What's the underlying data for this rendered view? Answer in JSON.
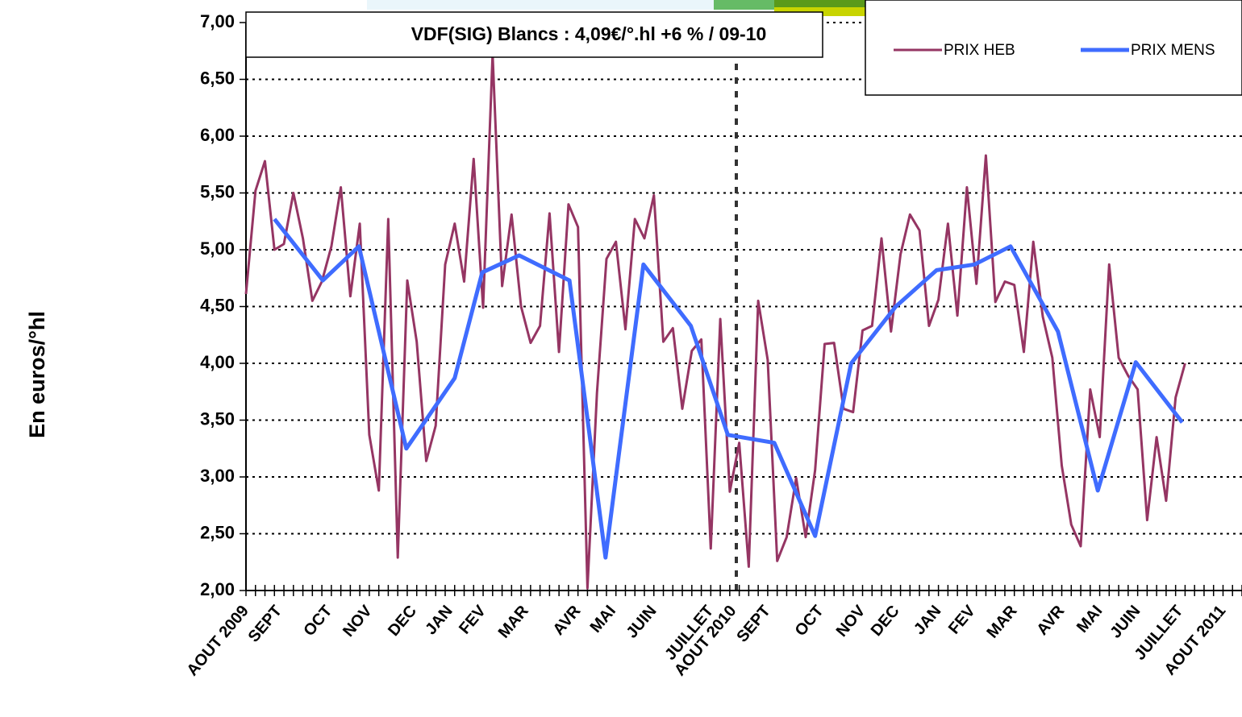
{
  "chart_data": {
    "type": "line",
    "annotation": "VDF(SIG) Blancs : 4,09€/°.hl +6 % / 09-10",
    "ylabel": "En euros/°hl",
    "xlim": [
      0,
      105
    ],
    "ylim": [
      2,
      7
    ],
    "yticks": [
      {
        "value": 2,
        "label": "2,00"
      },
      {
        "value": 2.5,
        "label": "2,50"
      },
      {
        "value": 3,
        "label": "3,00"
      },
      {
        "value": 3.5,
        "label": "3,50"
      },
      {
        "value": 4,
        "label": "4,00"
      },
      {
        "value": 4.5,
        "label": "4,50"
      },
      {
        "value": 5,
        "label": "5,00"
      },
      {
        "value": 5.5,
        "label": "5,50"
      },
      {
        "value": 6,
        "label": "6,00"
      },
      {
        "value": 6.5,
        "label": "6,50"
      },
      {
        "value": 7,
        "label": "7,00"
      }
    ],
    "xticks": [
      {
        "value": 0,
        "label": "AOUT 2009"
      },
      {
        "value": 3.5,
        "label": "SEPT"
      },
      {
        "value": 8.8,
        "label": "OCT"
      },
      {
        "value": 13,
        "label": "NOV"
      },
      {
        "value": 17.7,
        "label": "DEC"
      },
      {
        "value": 21.5,
        "label": "JAN"
      },
      {
        "value": 25,
        "label": "FEV"
      },
      {
        "value": 29.5,
        "label": "MAR"
      },
      {
        "value": 35,
        "label": "AVR"
      },
      {
        "value": 38.7,
        "label": "MAI"
      },
      {
        "value": 43,
        "label": "JUIN"
      },
      {
        "value": 49,
        "label": "JUILLET"
      },
      {
        "value": 51.4,
        "label": "AOUT 2010"
      },
      {
        "value": 55,
        "label": "SEPT"
      },
      {
        "value": 60.6,
        "label": "OCT"
      },
      {
        "value": 65,
        "label": "NOV"
      },
      {
        "value": 68.6,
        "label": "DEC"
      },
      {
        "value": 73,
        "label": "JAN"
      },
      {
        "value": 76.6,
        "label": "FEV"
      },
      {
        "value": 81,
        "label": "MAR"
      },
      {
        "value": 86,
        "label": "AVR"
      },
      {
        "value": 90,
        "label": "MAI"
      },
      {
        "value": 94,
        "label": "JUIN"
      },
      {
        "value": 98.5,
        "label": "JUILLET"
      },
      {
        "value": 103,
        "label": "AOUT 2011"
      }
    ],
    "xminorticks": [
      0,
      1,
      2,
      3,
      4,
      5,
      6,
      7,
      8,
      9,
      10,
      11,
      12,
      13,
      14,
      15,
      16,
      17,
      18,
      19,
      20,
      21,
      22,
      23,
      24,
      25,
      26,
      27,
      28,
      29,
      30,
      31,
      32,
      33,
      34,
      35,
      36,
      37,
      38,
      39,
      40,
      41,
      42,
      43,
      44,
      45,
      46,
      47,
      48,
      49,
      50,
      51,
      52,
      53,
      54,
      55,
      56,
      57,
      58,
      59,
      60,
      61,
      62,
      63,
      64,
      65,
      66,
      67,
      68,
      69,
      70,
      71,
      72,
      73,
      74,
      75,
      76,
      77,
      78,
      79,
      80,
      81,
      82,
      83,
      84,
      85,
      86,
      87,
      88,
      89,
      90,
      91,
      92,
      93,
      94,
      95,
      96,
      97,
      98,
      99,
      100,
      101,
      102,
      103,
      104,
      105
    ],
    "grid": true,
    "legend": "upper right",
    "series": [
      {
        "name": "PRIX HEB",
        "color": "#953563",
        "width": 3,
        "x": [
          0,
          1,
          2,
          3,
          4,
          5,
          6,
          7,
          8,
          9,
          10,
          11,
          12,
          13,
          14,
          15,
          16,
          17,
          18,
          19,
          20,
          21,
          22,
          23,
          24,
          25,
          26,
          27,
          28,
          29,
          30,
          31,
          32,
          33,
          34,
          35,
          36,
          37,
          38,
          39,
          40,
          41,
          42,
          43,
          44,
          45,
          46,
          47,
          48,
          49,
          50,
          51,
          52,
          53,
          54,
          55,
          56,
          57,
          58,
          59,
          60,
          61,
          62,
          63,
          64,
          65,
          66,
          67,
          68,
          69,
          70,
          71,
          72,
          73,
          74,
          75,
          76,
          77,
          78,
          79,
          80,
          81,
          82,
          83,
          84,
          85,
          86,
          87,
          88,
          89,
          90,
          91,
          92,
          93,
          94,
          95,
          96,
          97,
          98,
          99
        ],
        "values": [
          4.61,
          5.52,
          5.78,
          5.0,
          5.05,
          5.5,
          5.1,
          4.55,
          4.72,
          5.03,
          5.55,
          4.59,
          5.23,
          3.37,
          2.88,
          5.27,
          2.29,
          4.73,
          4.19,
          3.14,
          3.45,
          4.87,
          5.23,
          4.72,
          5.8,
          4.49,
          6.72,
          4.68,
          5.31,
          4.5,
          4.18,
          4.33,
          5.32,
          4.1,
          5.4,
          5.2,
          2.02,
          3.74,
          4.92,
          5.07,
          4.3,
          5.27,
          5.1,
          5.48,
          4.19,
          4.31,
          3.6,
          4.11,
          4.21,
          2.37,
          4.39,
          2.87,
          3.3,
          2.21,
          4.55,
          4.03,
          2.26,
          2.47,
          2.99,
          2.47,
          3.06,
          4.17,
          4.18,
          3.6,
          3.57,
          4.29,
          4.33,
          5.1,
          4.28,
          4.96,
          5.31,
          5.17,
          4.33,
          4.56,
          5.23,
          4.42,
          5.55,
          4.7,
          5.83,
          4.54,
          4.72,
          4.69,
          4.1,
          5.07,
          4.41,
          4.05,
          3.1,
          2.58,
          2.39,
          3.77,
          3.35,
          4.87,
          4.05,
          3.89,
          3.77,
          2.62,
          3.35,
          2.79,
          3.7,
          4.0
        ]
      },
      {
        "name": "PRIX MENS",
        "color": "#3f6cff",
        "width": 5,
        "x": [
          3,
          8.1,
          11.9,
          16.9,
          22,
          24.9,
          28.8,
          34.1,
          37.9,
          41.9,
          46.9,
          50.8,
          55.7,
          60,
          63.8,
          68.5,
          72.8,
          76.8,
          80.6,
          85.6,
          89.8,
          93.8,
          98.7
        ],
        "values": [
          5.27,
          4.73,
          5.03,
          3.25,
          3.87,
          4.8,
          4.95,
          4.73,
          2.29,
          4.87,
          4.33,
          3.37,
          3.3,
          2.48,
          4.0,
          4.5,
          4.82,
          4.87,
          5.03,
          4.28,
          2.88,
          4.01,
          3.48
        ]
      }
    ]
  }
}
